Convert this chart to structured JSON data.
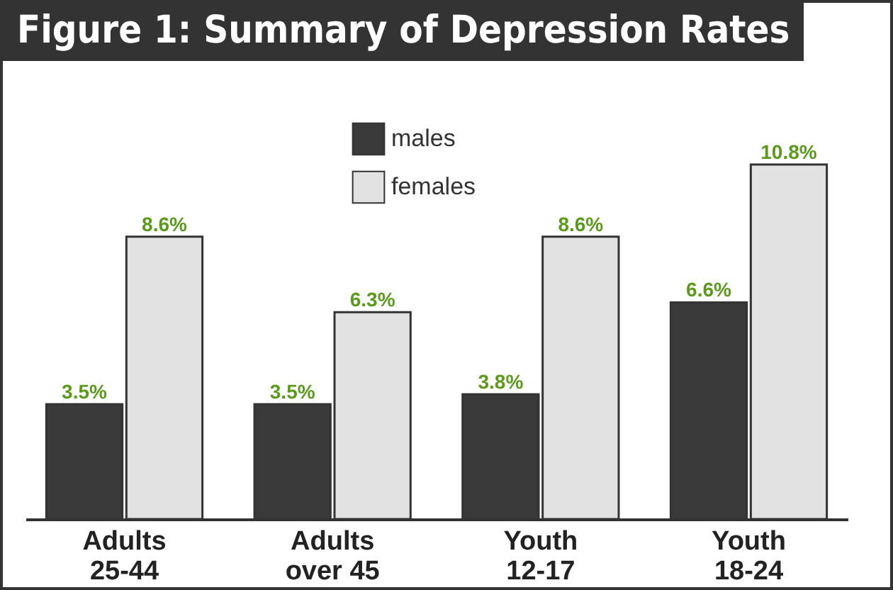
{
  "chart_data": {
    "type": "bar",
    "title": "Figure 1: Summary of Depression Rates",
    "categories": [
      "Adults 25-44",
      "Adults over 45",
      "Youth 12-17",
      "Youth 18-24"
    ],
    "series": [
      {
        "name": "males",
        "color": "#3a3a3a",
        "values": [
          3.5,
          3.5,
          3.8,
          6.6
        ],
        "value_labels": [
          "3.5%",
          "3.5%",
          "3.8%",
          "6.6%"
        ]
      },
      {
        "name": "females",
        "color": "#e2e2e2",
        "values": [
          8.6,
          6.3,
          8.6,
          10.8
        ],
        "value_labels": [
          "8.6%",
          "6.3%",
          "8.6%",
          "10.8%"
        ]
      }
    ],
    "legend": "top"
  }
}
